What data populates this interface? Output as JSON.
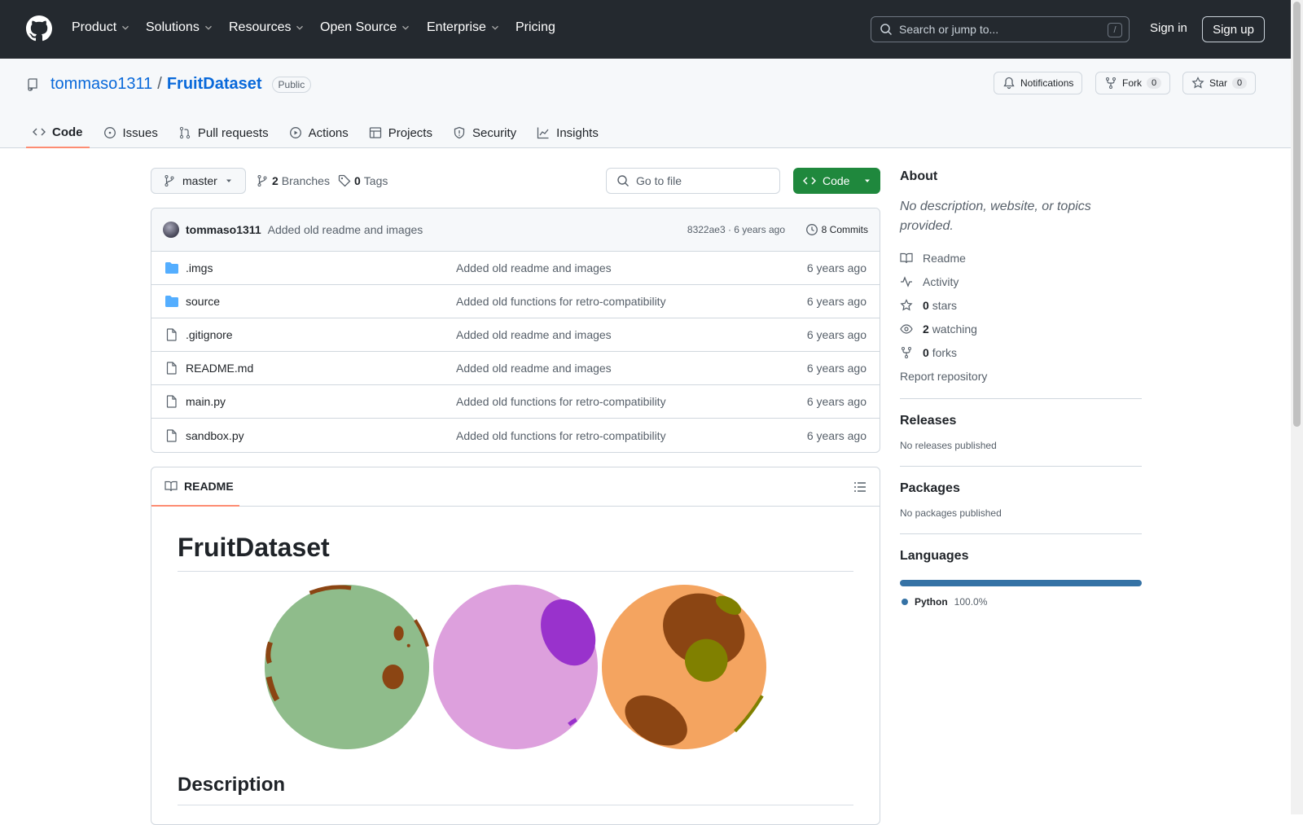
{
  "header": {
    "nav": [
      "Product",
      "Solutions",
      "Resources",
      "Open Source",
      "Enterprise",
      "Pricing"
    ],
    "search_placeholder": "Search or jump to...",
    "search_shortcut": "/",
    "sign_in": "Sign in",
    "sign_up": "Sign up"
  },
  "repo": {
    "owner": "tommaso1311",
    "separator": "/",
    "name": "FruitDataset",
    "visibility": "Public",
    "notifications_label": "Notifications",
    "fork_label": "Fork",
    "fork_count": "0",
    "star_label": "Star",
    "star_count": "0"
  },
  "tabs": [
    "Code",
    "Issues",
    "Pull requests",
    "Actions",
    "Projects",
    "Security",
    "Insights"
  ],
  "toolbar": {
    "branch": "master",
    "branches_count": "2",
    "branches_label": "Branches",
    "tags_count": "0",
    "tags_label": "Tags",
    "go_to_file": "Go to file",
    "code_button": "Code"
  },
  "commit": {
    "author": "tommaso1311",
    "message": "Added old readme and images",
    "sha_time": "8322ae3 · 6 years ago",
    "commits_label": "8 Commits"
  },
  "files": [
    {
      "name": ".imgs",
      "type": "folder",
      "message": "Added old readme and images",
      "time": "6 years ago"
    },
    {
      "name": "source",
      "type": "folder",
      "message": "Added old functions for retro-compatibility",
      "time": "6 years ago"
    },
    {
      "name": ".gitignore",
      "type": "file",
      "message": "Added old readme and images",
      "time": "6 years ago"
    },
    {
      "name": "README.md",
      "type": "file",
      "message": "Added old readme and images",
      "time": "6 years ago"
    },
    {
      "name": "main.py",
      "type": "file",
      "message": "Added old functions for retro-compatibility",
      "time": "6 years ago"
    },
    {
      "name": "sandbox.py",
      "type": "file",
      "message": "Added old functions for retro-compatibility",
      "time": "6 years ago"
    }
  ],
  "readme": {
    "tab_label": "README",
    "title": "FruitDataset",
    "section": "Description",
    "fruit_colors": [
      "#8fbc8b",
      "#dda0dd",
      "#f4a460"
    ]
  },
  "sidebar": {
    "about_title": "About",
    "about_desc": "No description, website, or topics provided.",
    "readme": "Readme",
    "activity": "Activity",
    "stars_count": "0",
    "stars_label": "stars",
    "watching_count": "2",
    "watching_label": "watching",
    "forks_count": "0",
    "forks_label": "forks",
    "report": "Report repository",
    "releases_title": "Releases",
    "releases_text": "No releases published",
    "packages_title": "Packages",
    "packages_text": "No packages published",
    "languages_title": "Languages",
    "language_name": "Python",
    "language_pct": "100.0%",
    "language_color": "#3572a5"
  }
}
